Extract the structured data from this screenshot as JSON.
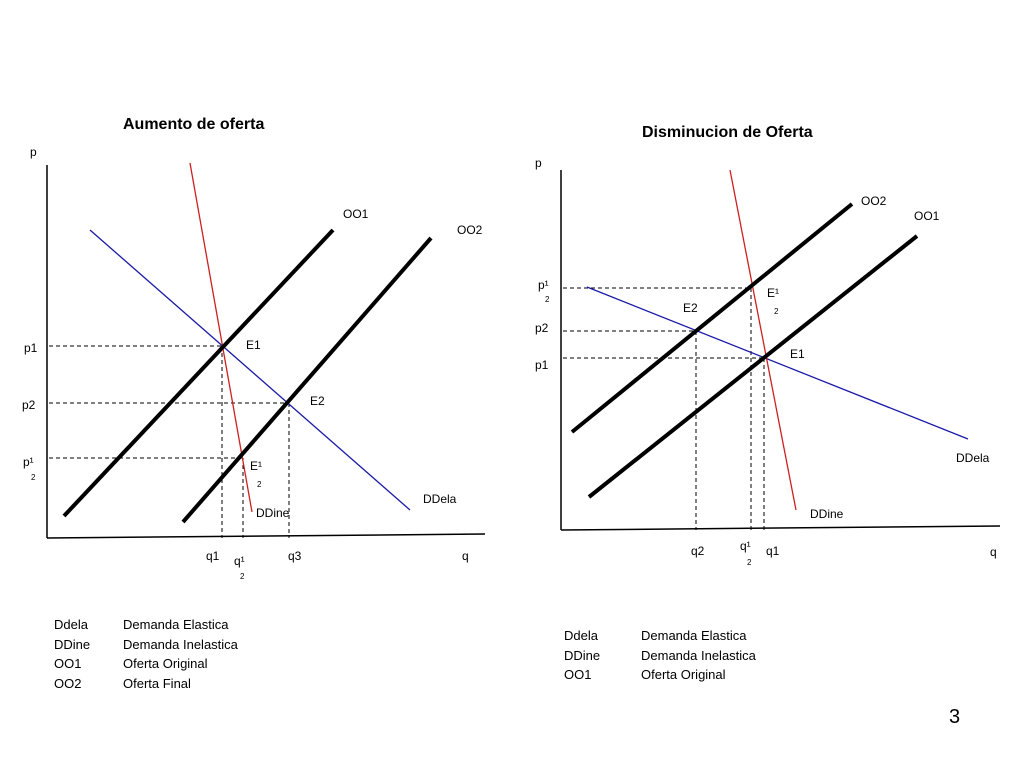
{
  "slide": {
    "page_number": "3"
  },
  "left_chart": {
    "title": "Aumento de oferta",
    "axis_p": "p",
    "axis_q": "q",
    "curves": {
      "oo1": "OO1",
      "oo2": "OO2",
      "ddela": "DDela",
      "ddine": "DDine"
    },
    "points": {
      "e1": "E1",
      "e2": "E2",
      "e12": "E¹",
      "e12_sub": "2"
    },
    "price_labels": {
      "p1": "p1",
      "p2": "p2",
      "p12": "p¹",
      "p12_sub": "2"
    },
    "quantity_labels": {
      "q1": "q1",
      "q12": "q¹",
      "q12_sub": "2",
      "q3": "q3"
    },
    "legend": [
      {
        "key": "Ddela",
        "desc": "Demanda Elastica"
      },
      {
        "key": "DDine",
        "desc": "Demanda Inelastica"
      },
      {
        "key": "OO1",
        "desc": "Oferta Original"
      },
      {
        "key": "OO2",
        "desc": "Oferta Final"
      }
    ]
  },
  "right_chart": {
    "title": "Disminucion de Oferta",
    "axis_p": "p",
    "axis_q": "q",
    "curves": {
      "oo2": "OO2",
      "oo1": "OO1",
      "ddela": "DDela",
      "ddine": "DDine"
    },
    "points": {
      "e12": "E¹",
      "e12_sub": "2",
      "e2": "E2",
      "e1": "E1"
    },
    "price_labels": {
      "p12": "p¹",
      "p12_sub": "2",
      "p2": "p2",
      "p1": "p1"
    },
    "quantity_labels": {
      "q2": "q2",
      "q12": "q¹",
      "q12_sub": "2",
      "q1": "q1"
    },
    "legend": [
      {
        "key": "Ddela",
        "desc": "Demanda Elastica"
      },
      {
        "key": "DDine",
        "desc": "Demanda Inelastica"
      },
      {
        "key": "OO1",
        "desc": "Oferta Original"
      }
    ]
  },
  "colors": {
    "elastic_demand": "#1a1aa6",
    "inelastic_demand": "#cc2020",
    "supply": "#000000"
  }
}
